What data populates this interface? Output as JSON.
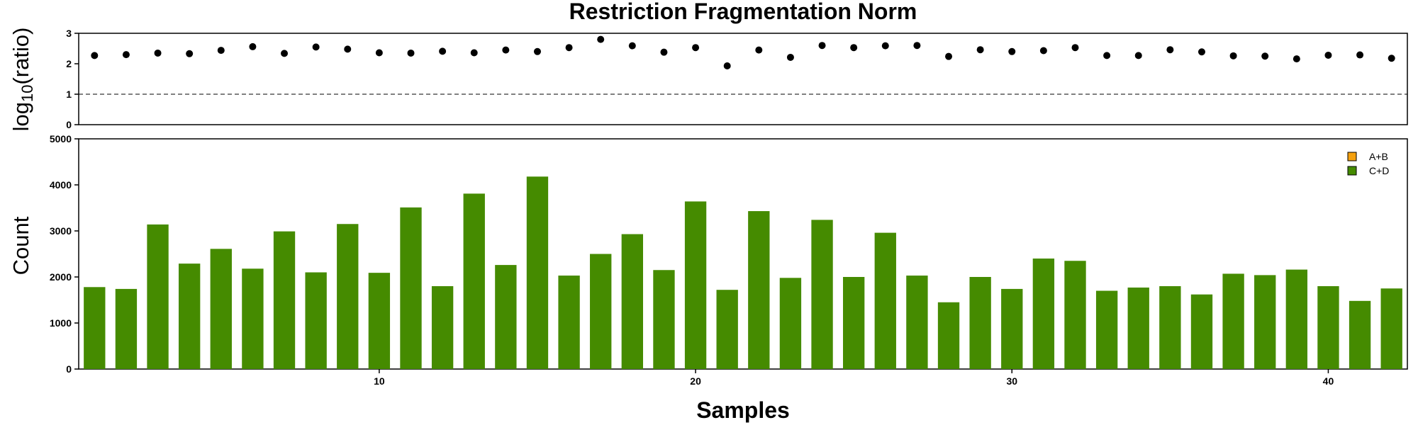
{
  "chart_data": {
    "title": "Restriction Fragmentation Norm",
    "xlabel": "Samples",
    "x_ticks": [
      10,
      20,
      30,
      40
    ],
    "x_range": [
      0.5,
      42.5
    ],
    "samples": [
      1,
      2,
      3,
      4,
      5,
      6,
      7,
      8,
      9,
      10,
      11,
      12,
      13,
      14,
      15,
      16,
      17,
      18,
      19,
      20,
      21,
      22,
      23,
      24,
      25,
      26,
      27,
      28,
      29,
      30,
      31,
      32,
      33,
      34,
      35,
      36,
      37,
      38,
      39,
      40,
      41,
      42
    ],
    "panels": [
      {
        "type": "scatter",
        "ylabel_main": "log",
        "ylabel_sub": "10",
        "ylabel_tail": "(ratio)",
        "ylim": [
          0,
          3
        ],
        "y_ticks": [
          0,
          1,
          2,
          3
        ],
        "reference_line": {
          "y": 1,
          "style": "dashed"
        },
        "point_color": "#000000",
        "values": [
          2.27,
          2.3,
          2.35,
          2.33,
          2.44,
          2.56,
          2.34,
          2.55,
          2.48,
          2.36,
          2.35,
          2.41,
          2.36,
          2.45,
          2.4,
          2.53,
          2.8,
          2.59,
          2.38,
          2.53,
          1.93,
          2.45,
          2.21,
          2.6,
          2.53,
          2.59,
          2.6,
          2.24,
          2.46,
          2.4,
          2.43,
          2.53,
          2.27,
          2.27,
          2.46,
          2.39,
          2.26,
          2.25,
          2.16,
          2.28,
          2.29,
          2.18
        ]
      },
      {
        "type": "bar",
        "ylabel": "Count",
        "ylim": [
          0,
          5000
        ],
        "y_ticks": [
          0,
          1000,
          2000,
          3000,
          4000,
          5000
        ],
        "legend_position": "top-right",
        "series": [
          {
            "name": "A+B",
            "color": "#F5A10F",
            "values": [
              0,
              0,
              0,
              0,
              0,
              0,
              0,
              0,
              0,
              0,
              0,
              0,
              0,
              0,
              0,
              0,
              0,
              0,
              0,
              0,
              0,
              0,
              0,
              0,
              0,
              0,
              0,
              0,
              0,
              0,
              0,
              0,
              0,
              0,
              0,
              0,
              0,
              0,
              0,
              0,
              0,
              0
            ]
          },
          {
            "name": "C+D",
            "color": "#458B00",
            "values": [
              1780,
              1740,
              3140,
              2290,
              2610,
              2180,
              2990,
              2100,
              3150,
              2090,
              3510,
              1800,
              3810,
              2260,
              4180,
              2030,
              2500,
              2930,
              2150,
              3640,
              1720,
              3430,
              1980,
              3240,
              2000,
              2960,
              2030,
              1450,
              2000,
              1740,
              2400,
              2350,
              1700,
              1770,
              1800,
              1620,
              2070,
              2040,
              2160,
              1800,
              1480,
              1750
            ]
          }
        ]
      }
    ]
  }
}
